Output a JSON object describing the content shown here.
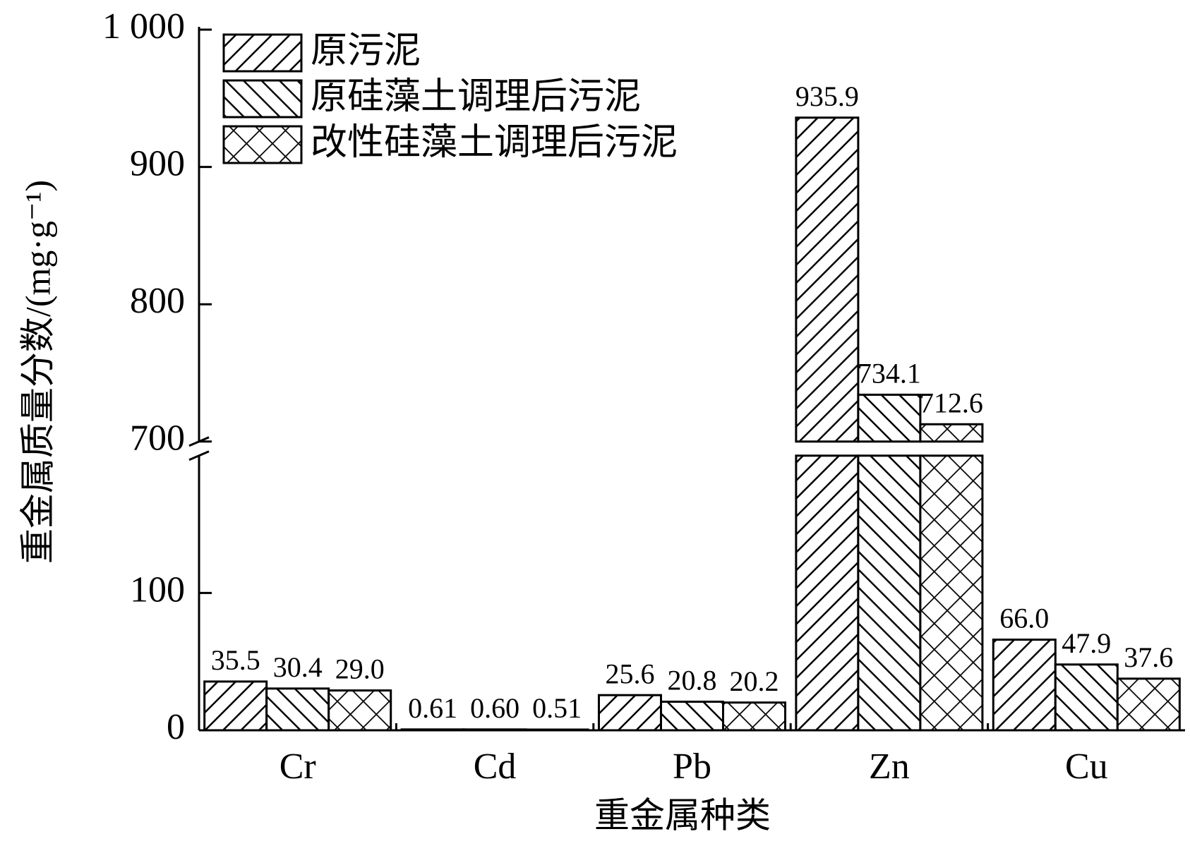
{
  "chart_data": {
    "type": "bar",
    "x_label": "重金属种类",
    "y_label": "重金属质量分数/(mg·g⁻¹)",
    "categories": [
      "Cr",
      "Cd",
      "Pb",
      "Zn",
      "Cu"
    ],
    "series": [
      {
        "name": "原污泥",
        "color": "#000000",
        "hatch": "forward",
        "values": [
          35.5,
          0.61,
          25.6,
          935.9,
          66.0
        ],
        "value_labels": [
          "35.5",
          "0.61",
          "25.6",
          "935.9",
          "66.0"
        ]
      },
      {
        "name": "原硅藻土调理后污泥",
        "color": "#000000",
        "hatch": "backward",
        "values": [
          30.4,
          0.6,
          20.8,
          734.1,
          47.9
        ],
        "value_labels": [
          "30.4",
          "0.60",
          "20.8",
          "734.1",
          "47.9"
        ]
      },
      {
        "name": "改性硅藻土调理后污泥",
        "color": "#000000",
        "hatch": "cross",
        "values": [
          29.0,
          0.51,
          20.2,
          712.6,
          37.6
        ],
        "value_labels": [
          "29.0",
          "0.51",
          "20.2",
          "712.6",
          "37.6"
        ]
      }
    ],
    "ylim": [
      0,
      1000
    ],
    "axis_break": [
      200,
      700
    ],
    "yticks": [
      0,
      100,
      700,
      800,
      900,
      {
        "value": 1000,
        "label": "1 000"
      }
    ],
    "legend": "upper left"
  }
}
